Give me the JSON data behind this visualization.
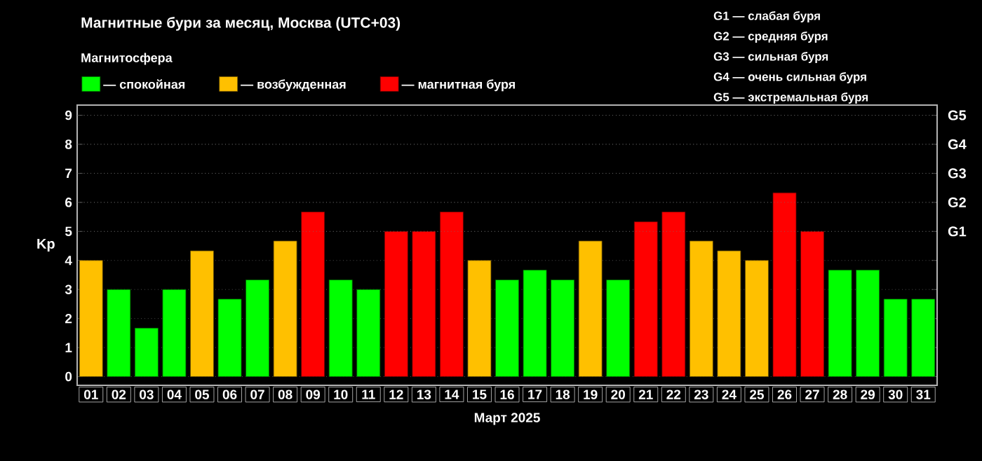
{
  "chart_data": {
    "type": "bar",
    "title": "Магнитные бури за месяц, Москва (UTC+03)",
    "legend_title": "Магнитосфера",
    "xlabel": "Март 2025",
    "ylabel": "Kp",
    "categories": [
      "01",
      "02",
      "03",
      "04",
      "05",
      "06",
      "07",
      "08",
      "09",
      "10",
      "11",
      "12",
      "13",
      "14",
      "15",
      "16",
      "17",
      "18",
      "19",
      "20",
      "21",
      "22",
      "23",
      "24",
      "25",
      "26",
      "27",
      "28",
      "29",
      "30",
      "31"
    ],
    "series": [
      {
        "name": "— спокойная",
        "color": "#00ff00",
        "values": [
          null,
          3,
          1.67,
          3,
          null,
          2.67,
          3.33,
          null,
          null,
          3.33,
          3,
          null,
          null,
          null,
          null,
          3.33,
          3.67,
          3.33,
          null,
          3.33,
          null,
          null,
          null,
          null,
          null,
          null,
          null,
          3.67,
          3.67,
          2.67,
          2.67
        ]
      },
      {
        "name": "— возбужденная",
        "color": "#ffc000",
        "values": [
          4,
          null,
          null,
          null,
          4.33,
          null,
          null,
          4.67,
          null,
          null,
          null,
          null,
          null,
          null,
          4,
          null,
          null,
          null,
          4.67,
          null,
          null,
          null,
          4.67,
          4.33,
          4,
          null,
          null,
          null,
          null,
          null,
          null
        ]
      },
      {
        "name": "— магнитная буря",
        "color": "#ff0000",
        "values": [
          null,
          null,
          null,
          null,
          null,
          null,
          null,
          null,
          5.67,
          null,
          null,
          5,
          5,
          5.67,
          null,
          null,
          null,
          null,
          null,
          null,
          5.33,
          5.67,
          null,
          null,
          null,
          6.33,
          5,
          null,
          null,
          null,
          null
        ]
      }
    ],
    "ylim": [
      -0.3,
      9.35
    ],
    "yticks": [
      0,
      1,
      2,
      3,
      4,
      5,
      6,
      7,
      8,
      9
    ],
    "ref_lines": [
      {
        "axis": "y",
        "value": 5,
        "label": "G1"
      },
      {
        "axis": "y",
        "value": 6,
        "label": "G2"
      },
      {
        "axis": "y",
        "value": 7,
        "label": "G3"
      },
      {
        "axis": "y",
        "value": 8,
        "label": "G4"
      },
      {
        "axis": "y",
        "value": 9,
        "label": "G5"
      }
    ],
    "grid": "y",
    "legend": "top left",
    "annotations": [
      "G1 — слабая буря",
      "G2 — средняя буря",
      "G3 — сильная буря",
      "G4 — очень сильная буря",
      "G5 — экстремальная буря"
    ]
  }
}
